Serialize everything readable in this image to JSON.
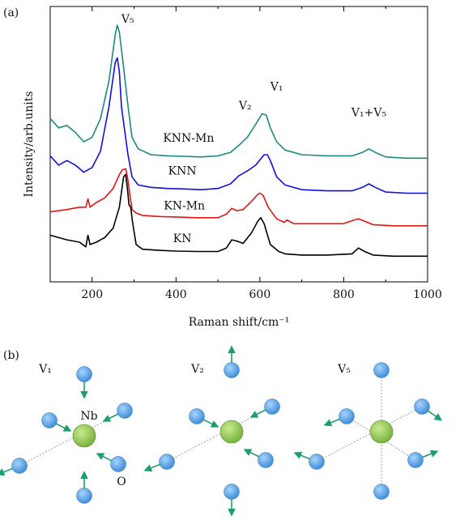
{
  "panel_a_label": "(a)",
  "panel_b_label": "(b)",
  "chart_data": {
    "type": "line",
    "xlabel": "Raman shift/cm⁻¹",
    "ylabel": "Intensity/arb.units",
    "xlim": [
      100,
      1000
    ],
    "x_ticks": [
      200,
      400,
      600,
      800,
      1000
    ],
    "y_tick_labels": "none",
    "grid": false,
    "legend": "inline labels",
    "annotations": [
      "V₅",
      "V₂",
      "V₁",
      "V₁+V₅"
    ],
    "series": [
      {
        "name": "KNN-Mn",
        "color": "#1a8a80",
        "x": [
          100,
          120,
          140,
          160,
          180,
          200,
          220,
          240,
          255,
          260,
          265,
          275,
          285,
          295,
          310,
          340,
          380,
          420,
          460,
          500,
          530,
          550,
          570,
          590,
          605,
          615,
          625,
          640,
          660,
          700,
          760,
          820,
          845,
          860,
          875,
          900,
          950,
          1000
        ],
        "y": [
          0.8,
          0.76,
          0.77,
          0.74,
          0.7,
          0.72,
          0.8,
          0.96,
          1.16,
          1.2,
          1.17,
          1.02,
          0.86,
          0.72,
          0.67,
          0.645,
          0.64,
          0.638,
          0.635,
          0.64,
          0.655,
          0.685,
          0.72,
          0.775,
          0.82,
          0.815,
          0.76,
          0.7,
          0.665,
          0.645,
          0.64,
          0.64,
          0.655,
          0.67,
          0.655,
          0.635,
          0.63,
          0.63
        ]
      },
      {
        "name": "KNN",
        "color": "#1010dd",
        "x": [
          100,
          120,
          140,
          160,
          180,
          200,
          220,
          240,
          255,
          260,
          265,
          270,
          285,
          295,
          310,
          340,
          380,
          420,
          460,
          500,
          530,
          550,
          570,
          590,
          610,
          618,
          625,
          640,
          660,
          700,
          760,
          820,
          845,
          860,
          875,
          900,
          950,
          1000
        ],
        "y": [
          0.64,
          0.6,
          0.62,
          0.6,
          0.57,
          0.59,
          0.66,
          0.85,
          1.04,
          1.06,
          1.0,
          0.85,
          0.65,
          0.55,
          0.515,
          0.505,
          0.5,
          0.498,
          0.495,
          0.5,
          0.52,
          0.555,
          0.575,
          0.6,
          0.645,
          0.645,
          0.62,
          0.55,
          0.515,
          0.495,
          0.49,
          0.49,
          0.505,
          0.52,
          0.505,
          0.485,
          0.48,
          0.48
        ]
      },
      {
        "name": "KN-Mn",
        "color": "#e01515",
        "x": [
          100,
          140,
          170,
          185,
          190,
          195,
          210,
          230,
          250,
          265,
          272,
          280,
          284,
          288,
          295,
          305,
          320,
          360,
          400,
          450,
          500,
          520,
          533,
          545,
          560,
          580,
          595,
          600,
          608,
          620,
          640,
          658,
          665,
          680,
          720,
          800,
          825,
          835,
          850,
          870,
          920,
          1000
        ],
        "y": [
          0.4,
          0.41,
          0.42,
          0.42,
          0.455,
          0.42,
          0.44,
          0.46,
          0.5,
          0.56,
          0.58,
          0.585,
          0.55,
          0.5,
          0.41,
          0.395,
          0.385,
          0.38,
          0.378,
          0.375,
          0.375,
          0.39,
          0.415,
          0.405,
          0.41,
          0.445,
          0.475,
          0.48,
          0.47,
          0.42,
          0.37,
          0.355,
          0.365,
          0.35,
          0.35,
          0.35,
          0.365,
          0.37,
          0.36,
          0.345,
          0.34,
          0.34
        ]
      },
      {
        "name": "KN",
        "color": "#000000",
        "x": [
          100,
          140,
          170,
          185,
          190,
          195,
          210,
          230,
          250,
          265,
          275,
          280,
          284,
          288,
          292,
          296,
          305,
          320,
          360,
          400,
          450,
          500,
          520,
          533,
          545,
          560,
          580,
          595,
          602,
          610,
          625,
          645,
          660,
          700,
          760,
          820,
          835,
          850,
          870,
          920,
          1000
        ],
        "y": [
          0.3,
          0.28,
          0.27,
          0.25,
          0.3,
          0.26,
          0.27,
          0.29,
          0.33,
          0.42,
          0.55,
          0.56,
          0.5,
          0.43,
          0.42,
          0.36,
          0.26,
          0.24,
          0.235,
          0.232,
          0.23,
          0.23,
          0.245,
          0.28,
          0.275,
          0.265,
          0.31,
          0.36,
          0.375,
          0.35,
          0.26,
          0.23,
          0.22,
          0.215,
          0.215,
          0.22,
          0.245,
          0.23,
          0.215,
          0.21,
          0.21
        ]
      }
    ],
    "curve_labels": [
      {
        "text": "KNN-Mn",
        "x": 430,
        "y": 0.7
      },
      {
        "text": "KNN",
        "x": 415,
        "y": 0.56
      },
      {
        "text": "KN-Mn",
        "x": 420,
        "y": 0.41
      },
      {
        "text": "KN",
        "x": 415,
        "y": 0.27
      }
    ],
    "annotation_positions": [
      {
        "text": "V₅",
        "x": 285,
        "y": 1.21
      },
      {
        "text": "V₂",
        "x": 565,
        "y": 0.84
      },
      {
        "text": "V₁",
        "x": 640,
        "y": 0.92
      },
      {
        "text": "V₁+V₅",
        "x": 860,
        "y": 0.81
      }
    ]
  },
  "diagram": {
    "modes": [
      {
        "label": "V₁",
        "center_label": "Nb",
        "oxygen_label": "O"
      },
      {
        "label": "V₂"
      },
      {
        "label": "V₅"
      }
    ],
    "colors": {
      "nb": "#7cb342",
      "o": "#3f8fd8",
      "arrow": "#1b9e6e",
      "bond": "#888888"
    }
  }
}
